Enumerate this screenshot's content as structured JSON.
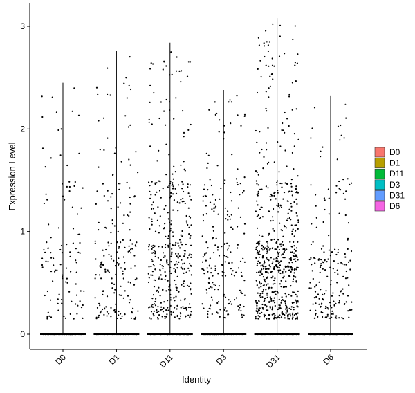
{
  "chart_data": {
    "type": "violin-jitter",
    "xlabel": "Identity",
    "ylabel": "Expression Level",
    "categories": [
      "D0",
      "D1",
      "D11",
      "D3",
      "D31",
      "D6"
    ],
    "ylim": [
      -0.18,
      3.12
    ],
    "yticks": [
      0,
      1,
      2,
      3
    ],
    "yticklabels": [
      "0",
      "1",
      "2",
      "3"
    ],
    "violin_max": [
      2.45,
      2.76,
      2.84,
      2.38,
      3.08,
      2.32
    ],
    "nonzero_counts": [
      110,
      190,
      390,
      210,
      620,
      190
    ],
    "legend": {
      "position": "right",
      "entries": [
        {
          "label": "D0",
          "color": "#F8766D"
        },
        {
          "label": "D1",
          "color": "#B79F00"
        },
        {
          "label": "D11",
          "color": "#00BA38"
        },
        {
          "label": "D3",
          "color": "#00BFC4"
        },
        {
          "label": "D31",
          "color": "#619CFF"
        },
        {
          "label": "D6",
          "color": "#F564E3"
        }
      ]
    },
    "grid": false,
    "point_color": "#000000"
  }
}
